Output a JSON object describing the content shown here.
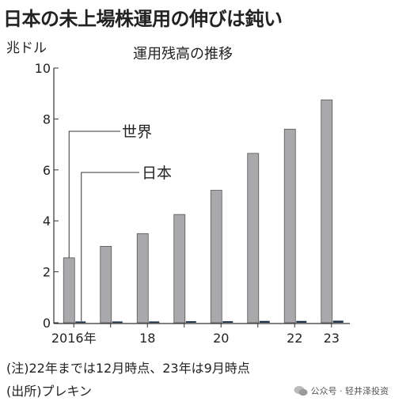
{
  "title": "日本の未上場株運用の伸びは鈍い",
  "notes": {
    "note1": "(注)22年までは12月時点、23年は9月時点",
    "note2": "(出所)プレキン"
  },
  "watermark": {
    "text": "公众号 · 轻井泽投资",
    "icon": "wechat-icon"
  },
  "colors": {
    "world_bar": "#a9a9ab",
    "japan_bar": "#1d3046",
    "axis": "#333333"
  },
  "chart_data": {
    "type": "bar",
    "title": "運用残高の推移",
    "ylabel": "兆ドル",
    "xlabel": "",
    "ylim": [
      0,
      10
    ],
    "yticks": [
      0,
      2,
      4,
      6,
      8,
      10
    ],
    "categories": [
      "2016",
      "2017",
      "2018",
      "2019",
      "2020",
      "2021",
      "2022",
      "2023"
    ],
    "xtick_labels": [
      "2016年",
      "",
      "18",
      "",
      "20",
      "",
      "22",
      "23"
    ],
    "series": [
      {
        "name": "世界",
        "values": [
          2.55,
          3.0,
          3.5,
          4.25,
          5.2,
          6.65,
          7.6,
          8.75
        ]
      },
      {
        "name": "日本",
        "values": [
          0.05,
          0.05,
          0.05,
          0.06,
          0.06,
          0.07,
          0.07,
          0.08
        ]
      }
    ],
    "legend_placement": "inline-left",
    "grid": false
  }
}
